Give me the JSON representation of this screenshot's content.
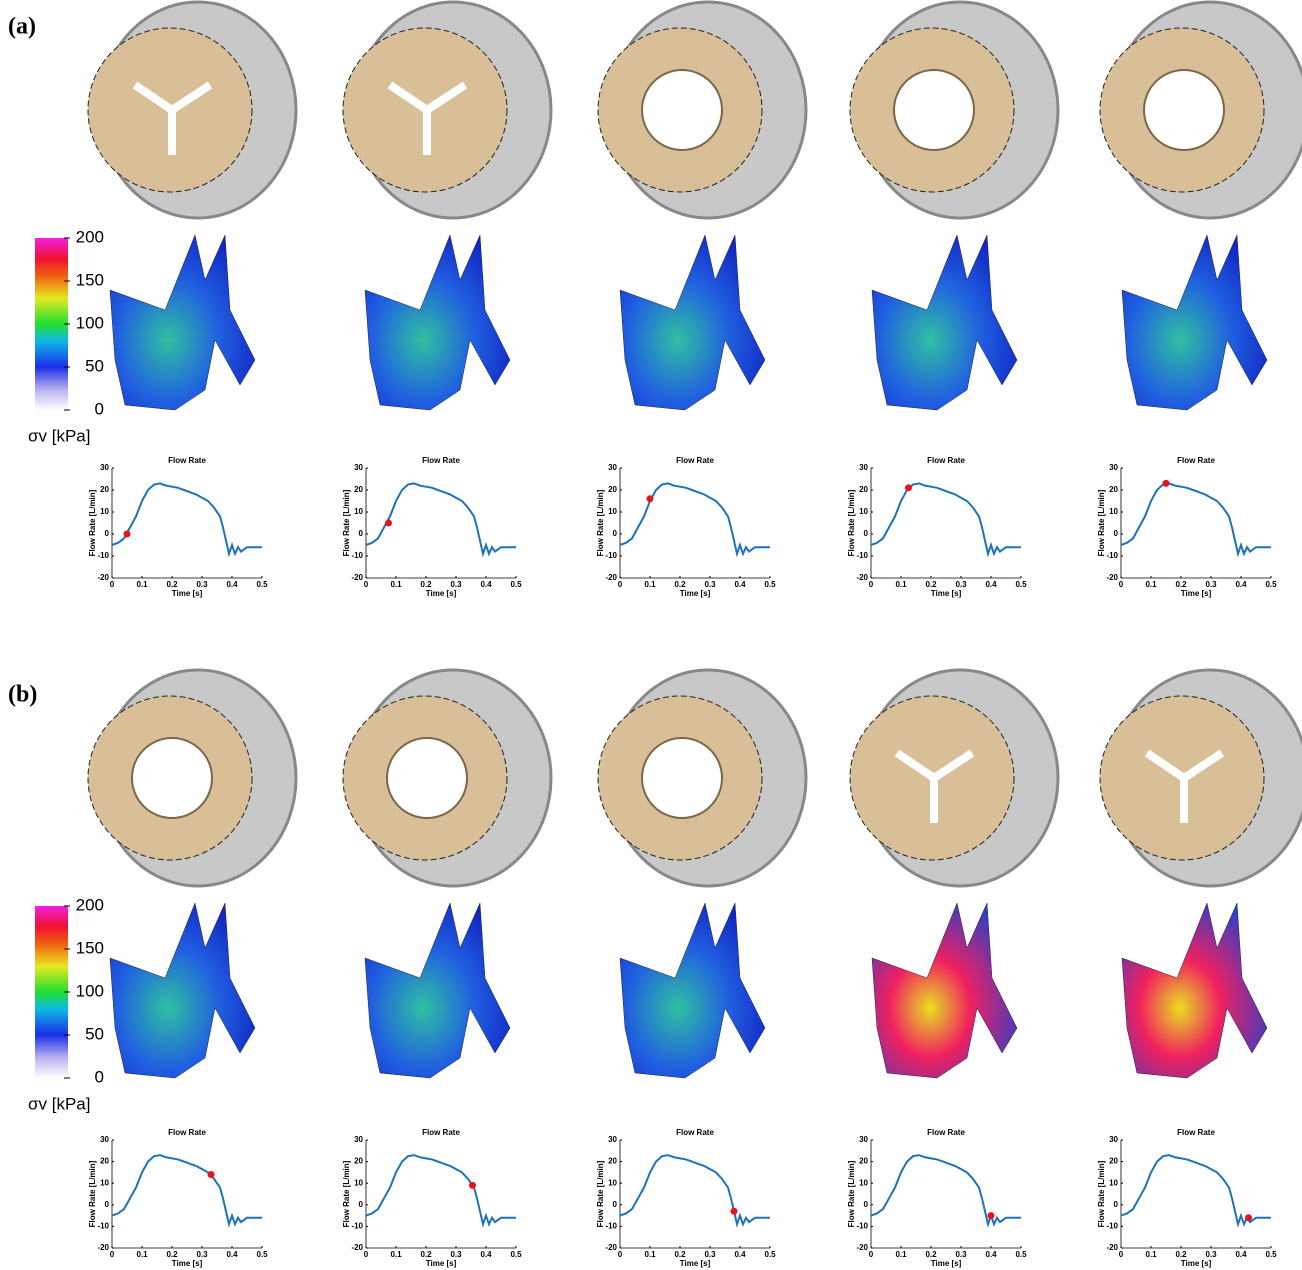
{
  "panels": [
    {
      "label": "(a)",
      "colorbar": {
        "label": "σv [kPa]",
        "ticks": [
          0,
          50,
          100,
          150,
          200
        ],
        "lim": [
          0,
          200
        ]
      }
    },
    {
      "label": "(b)",
      "colorbar": {
        "label": "σv [kPa]",
        "ticks": [
          0,
          50,
          100,
          150,
          200
        ],
        "lim": [
          0,
          200
        ]
      }
    }
  ],
  "chart_data": [
    {
      "type": "line",
      "title": "Flow Rate",
      "xlabel": "Time [s]",
      "ylabel": "Flow Rate [L/min]",
      "x": [
        0,
        0.02,
        0.04,
        0.06,
        0.08,
        0.1,
        0.12,
        0.14,
        0.16,
        0.18,
        0.2,
        0.22,
        0.24,
        0.26,
        0.28,
        0.3,
        0.32,
        0.34,
        0.36,
        0.37,
        0.38,
        0.39,
        0.4,
        0.41,
        0.42,
        0.43,
        0.45,
        0.5
      ],
      "series": [
        {
          "color": "#1f72b8",
          "values": [
            -5,
            -4,
            -2,
            3,
            8,
            15,
            20,
            22.5,
            23,
            22,
            21.5,
            21,
            20,
            19,
            18,
            16.5,
            15,
            12,
            8,
            3,
            -3,
            -9,
            -5,
            -9,
            -6,
            -8,
            -6,
            -6
          ]
        }
      ],
      "highlight": {
        "x": 0.05,
        "y": 0,
        "color": "#e8141b"
      },
      "xlim": [
        0,
        0.5
      ],
      "xticks": [
        0,
        0.1,
        0.2,
        0.3,
        0.4,
        0.5
      ],
      "ylim": [
        -20,
        30
      ],
      "yticks": [
        -20,
        -10,
        0,
        10,
        20,
        30
      ]
    },
    {
      "type": "line",
      "title": "Flow Rate",
      "xlabel": "Time [s]",
      "ylabel": "Flow Rate [L/min]",
      "x": [
        0,
        0.02,
        0.04,
        0.06,
        0.08,
        0.1,
        0.12,
        0.14,
        0.16,
        0.18,
        0.2,
        0.22,
        0.24,
        0.26,
        0.28,
        0.3,
        0.32,
        0.34,
        0.36,
        0.37,
        0.38,
        0.39,
        0.4,
        0.41,
        0.42,
        0.43,
        0.45,
        0.5
      ],
      "series": [
        {
          "color": "#1f72b8",
          "values": [
            -5,
            -4,
            -2,
            3,
            8,
            15,
            20,
            22.5,
            23,
            22,
            21.5,
            21,
            20,
            19,
            18,
            16.5,
            15,
            12,
            8,
            3,
            -3,
            -9,
            -5,
            -9,
            -6,
            -8,
            -6,
            -6
          ]
        }
      ],
      "highlight": {
        "x": 0.075,
        "y": 5,
        "color": "#e8141b"
      },
      "xlim": [
        0,
        0.5
      ],
      "xticks": [
        0,
        0.1,
        0.2,
        0.3,
        0.4,
        0.5
      ],
      "ylim": [
        -20,
        30
      ],
      "yticks": [
        -20,
        -10,
        0,
        10,
        20,
        30
      ]
    },
    {
      "type": "line",
      "title": "Flow Rate",
      "xlabel": "Time [s]",
      "ylabel": "Flow Rate [L/min]",
      "x": [
        0,
        0.02,
        0.04,
        0.06,
        0.08,
        0.1,
        0.12,
        0.14,
        0.16,
        0.18,
        0.2,
        0.22,
        0.24,
        0.26,
        0.28,
        0.3,
        0.32,
        0.34,
        0.36,
        0.37,
        0.38,
        0.39,
        0.4,
        0.41,
        0.42,
        0.43,
        0.45,
        0.5
      ],
      "series": [
        {
          "color": "#1f72b8",
          "values": [
            -5,
            -4,
            -2,
            3,
            8,
            15,
            20,
            22.5,
            23,
            22,
            21.5,
            21,
            20,
            19,
            18,
            16.5,
            15,
            12,
            8,
            3,
            -3,
            -9,
            -5,
            -9,
            -6,
            -8,
            -6,
            -6
          ]
        }
      ],
      "highlight": {
        "x": 0.1,
        "y": 16,
        "color": "#e8141b"
      },
      "xlim": [
        0,
        0.5
      ],
      "xticks": [
        0,
        0.1,
        0.2,
        0.3,
        0.4,
        0.5
      ],
      "ylim": [
        -20,
        30
      ],
      "yticks": [
        -20,
        -10,
        0,
        10,
        20,
        30
      ]
    },
    {
      "type": "line",
      "title": "Flow Rate",
      "xlabel": "Time [s]",
      "ylabel": "Flow Rate [L/min]",
      "x": [
        0,
        0.02,
        0.04,
        0.06,
        0.08,
        0.1,
        0.12,
        0.14,
        0.16,
        0.18,
        0.2,
        0.22,
        0.24,
        0.26,
        0.28,
        0.3,
        0.32,
        0.34,
        0.36,
        0.37,
        0.38,
        0.39,
        0.4,
        0.41,
        0.42,
        0.43,
        0.45,
        0.5
      ],
      "series": [
        {
          "color": "#1f72b8",
          "values": [
            -5,
            -4,
            -2,
            3,
            8,
            15,
            20,
            22.5,
            23,
            22,
            21.5,
            21,
            20,
            19,
            18,
            16.5,
            15,
            12,
            8,
            3,
            -3,
            -9,
            -5,
            -9,
            -6,
            -8,
            -6,
            -6
          ]
        }
      ],
      "highlight": {
        "x": 0.125,
        "y": 21,
        "color": "#e8141b"
      },
      "xlim": [
        0,
        0.5
      ],
      "xticks": [
        0,
        0.1,
        0.2,
        0.3,
        0.4,
        0.5
      ],
      "ylim": [
        -20,
        30
      ],
      "yticks": [
        -20,
        -10,
        0,
        10,
        20,
        30
      ]
    },
    {
      "type": "line",
      "title": "Flow Rate",
      "xlabel": "Time [s]",
      "ylabel": "Flow Rate [L/min]",
      "x": [
        0,
        0.02,
        0.04,
        0.06,
        0.08,
        0.1,
        0.12,
        0.14,
        0.16,
        0.18,
        0.2,
        0.22,
        0.24,
        0.26,
        0.28,
        0.3,
        0.32,
        0.34,
        0.36,
        0.37,
        0.38,
        0.39,
        0.4,
        0.41,
        0.42,
        0.43,
        0.45,
        0.5
      ],
      "series": [
        {
          "color": "#1f72b8",
          "values": [
            -5,
            -4,
            -2,
            3,
            8,
            15,
            20,
            22.5,
            23,
            22,
            21.5,
            21,
            20,
            19,
            18,
            16.5,
            15,
            12,
            8,
            3,
            -3,
            -9,
            -5,
            -9,
            -6,
            -8,
            -6,
            -6
          ]
        }
      ],
      "highlight": {
        "x": 0.15,
        "y": 23,
        "color": "#e8141b"
      },
      "xlim": [
        0,
        0.5
      ],
      "xticks": [
        0,
        0.1,
        0.2,
        0.3,
        0.4,
        0.5
      ],
      "ylim": [
        -20,
        30
      ],
      "yticks": [
        -20,
        -10,
        0,
        10,
        20,
        30
      ]
    },
    {
      "type": "line",
      "title": "Flow Rate",
      "xlabel": "Time [s]",
      "ylabel": "Flow Rate [L/min]",
      "x": [
        0,
        0.02,
        0.04,
        0.06,
        0.08,
        0.1,
        0.12,
        0.14,
        0.16,
        0.18,
        0.2,
        0.22,
        0.24,
        0.26,
        0.28,
        0.3,
        0.32,
        0.34,
        0.36,
        0.37,
        0.38,
        0.39,
        0.4,
        0.41,
        0.42,
        0.43,
        0.45,
        0.5
      ],
      "series": [
        {
          "color": "#1f72b8",
          "values": [
            -5,
            -4,
            -2,
            3,
            8,
            15,
            20,
            22.5,
            23,
            22,
            21.5,
            21,
            20,
            19,
            18,
            16.5,
            15,
            12,
            8,
            3,
            -3,
            -9,
            -5,
            -9,
            -6,
            -8,
            -6,
            -6
          ]
        }
      ],
      "highlight": {
        "x": 0.33,
        "y": 14,
        "color": "#e8141b"
      },
      "xlim": [
        0,
        0.5
      ],
      "xticks": [
        0,
        0.1,
        0.2,
        0.3,
        0.4,
        0.5
      ],
      "ylim": [
        -20,
        30
      ],
      "yticks": [
        -20,
        -10,
        0,
        10,
        20,
        30
      ]
    },
    {
      "type": "line",
      "title": "Flow Rate",
      "xlabel": "Time [s]",
      "ylabel": "Flow Rate [L/min]",
      "x": [
        0,
        0.02,
        0.04,
        0.06,
        0.08,
        0.1,
        0.12,
        0.14,
        0.16,
        0.18,
        0.2,
        0.22,
        0.24,
        0.26,
        0.28,
        0.3,
        0.32,
        0.34,
        0.36,
        0.37,
        0.38,
        0.39,
        0.4,
        0.41,
        0.42,
        0.43,
        0.45,
        0.5
      ],
      "series": [
        {
          "color": "#1f72b8",
          "values": [
            -5,
            -4,
            -2,
            3,
            8,
            15,
            20,
            22.5,
            23,
            22,
            21.5,
            21,
            20,
            19,
            18,
            16.5,
            15,
            12,
            8,
            3,
            -3,
            -9,
            -5,
            -9,
            -6,
            -8,
            -6,
            -6
          ]
        }
      ],
      "highlight": {
        "x": 0.355,
        "y": 9,
        "color": "#e8141b"
      },
      "xlim": [
        0,
        0.5
      ],
      "xticks": [
        0,
        0.1,
        0.2,
        0.3,
        0.4,
        0.5
      ],
      "ylim": [
        -20,
        30
      ],
      "yticks": [
        -20,
        -10,
        0,
        10,
        20,
        30
      ]
    },
    {
      "type": "line",
      "title": "Flow Rate",
      "xlabel": "Time [s]",
      "ylabel": "Flow Rate [L/min]",
      "x": [
        0,
        0.02,
        0.04,
        0.06,
        0.08,
        0.1,
        0.12,
        0.14,
        0.16,
        0.18,
        0.2,
        0.22,
        0.24,
        0.26,
        0.28,
        0.3,
        0.32,
        0.34,
        0.36,
        0.37,
        0.38,
        0.39,
        0.4,
        0.41,
        0.42,
        0.43,
        0.45,
        0.5
      ],
      "series": [
        {
          "color": "#1f72b8",
          "values": [
            -5,
            -4,
            -2,
            3,
            8,
            15,
            20,
            22.5,
            23,
            22,
            21.5,
            21,
            20,
            19,
            18,
            16.5,
            15,
            12,
            8,
            3,
            -3,
            -9,
            -5,
            -9,
            -6,
            -8,
            -6,
            -6
          ]
        }
      ],
      "highlight": {
        "x": 0.38,
        "y": -3,
        "color": "#e8141b"
      },
      "xlim": [
        0,
        0.5
      ],
      "xticks": [
        0,
        0.1,
        0.2,
        0.3,
        0.4,
        0.5
      ],
      "ylim": [
        -20,
        30
      ],
      "yticks": [
        -20,
        -10,
        0,
        10,
        20,
        30
      ]
    },
    {
      "type": "line",
      "title": "Flow Rate",
      "xlabel": "Time [s]",
      "ylabel": "Flow Rate [L/min]",
      "x": [
        0,
        0.02,
        0.04,
        0.06,
        0.08,
        0.1,
        0.12,
        0.14,
        0.16,
        0.18,
        0.2,
        0.22,
        0.24,
        0.26,
        0.28,
        0.3,
        0.32,
        0.34,
        0.36,
        0.37,
        0.38,
        0.39,
        0.4,
        0.41,
        0.42,
        0.43,
        0.45,
        0.5
      ],
      "series": [
        {
          "color": "#1f72b8",
          "values": [
            -5,
            -4,
            -2,
            3,
            8,
            15,
            20,
            22.5,
            23,
            22,
            21.5,
            21,
            20,
            19,
            18,
            16.5,
            15,
            12,
            8,
            3,
            -3,
            -9,
            -5,
            -9,
            -6,
            -8,
            -6,
            -6
          ]
        }
      ],
      "highlight": {
        "x": 0.4,
        "y": -5,
        "color": "#e8141b"
      },
      "xlim": [
        0,
        0.5
      ],
      "xticks": [
        0,
        0.1,
        0.2,
        0.3,
        0.4,
        0.5
      ],
      "ylim": [
        -20,
        30
      ],
      "yticks": [
        -20,
        -10,
        0,
        10,
        20,
        30
      ]
    },
    {
      "type": "line",
      "title": "Flow Rate",
      "xlabel": "Time [s]",
      "ylabel": "Flow Rate [L/min]",
      "x": [
        0,
        0.02,
        0.04,
        0.06,
        0.08,
        0.1,
        0.12,
        0.14,
        0.16,
        0.18,
        0.2,
        0.22,
        0.24,
        0.26,
        0.28,
        0.3,
        0.32,
        0.34,
        0.36,
        0.37,
        0.38,
        0.39,
        0.4,
        0.41,
        0.42,
        0.43,
        0.45,
        0.5
      ],
      "series": [
        {
          "color": "#1f72b8",
          "values": [
            -5,
            -4,
            -2,
            3,
            8,
            15,
            20,
            22.5,
            23,
            22,
            21.5,
            21,
            20,
            19,
            18,
            16.5,
            15,
            12,
            8,
            3,
            -3,
            -9,
            -5,
            -9,
            -6,
            -8,
            -6,
            -6
          ]
        }
      ],
      "highlight": {
        "x": 0.425,
        "y": -6,
        "color": "#e8141b"
      },
      "xlim": [
        0,
        0.5
      ],
      "xticks": [
        0,
        0.1,
        0.2,
        0.3,
        0.4,
        0.5
      ],
      "ylim": [
        -20,
        30
      ],
      "yticks": [
        -20,
        -10,
        0,
        10,
        20,
        30
      ]
    }
  ]
}
